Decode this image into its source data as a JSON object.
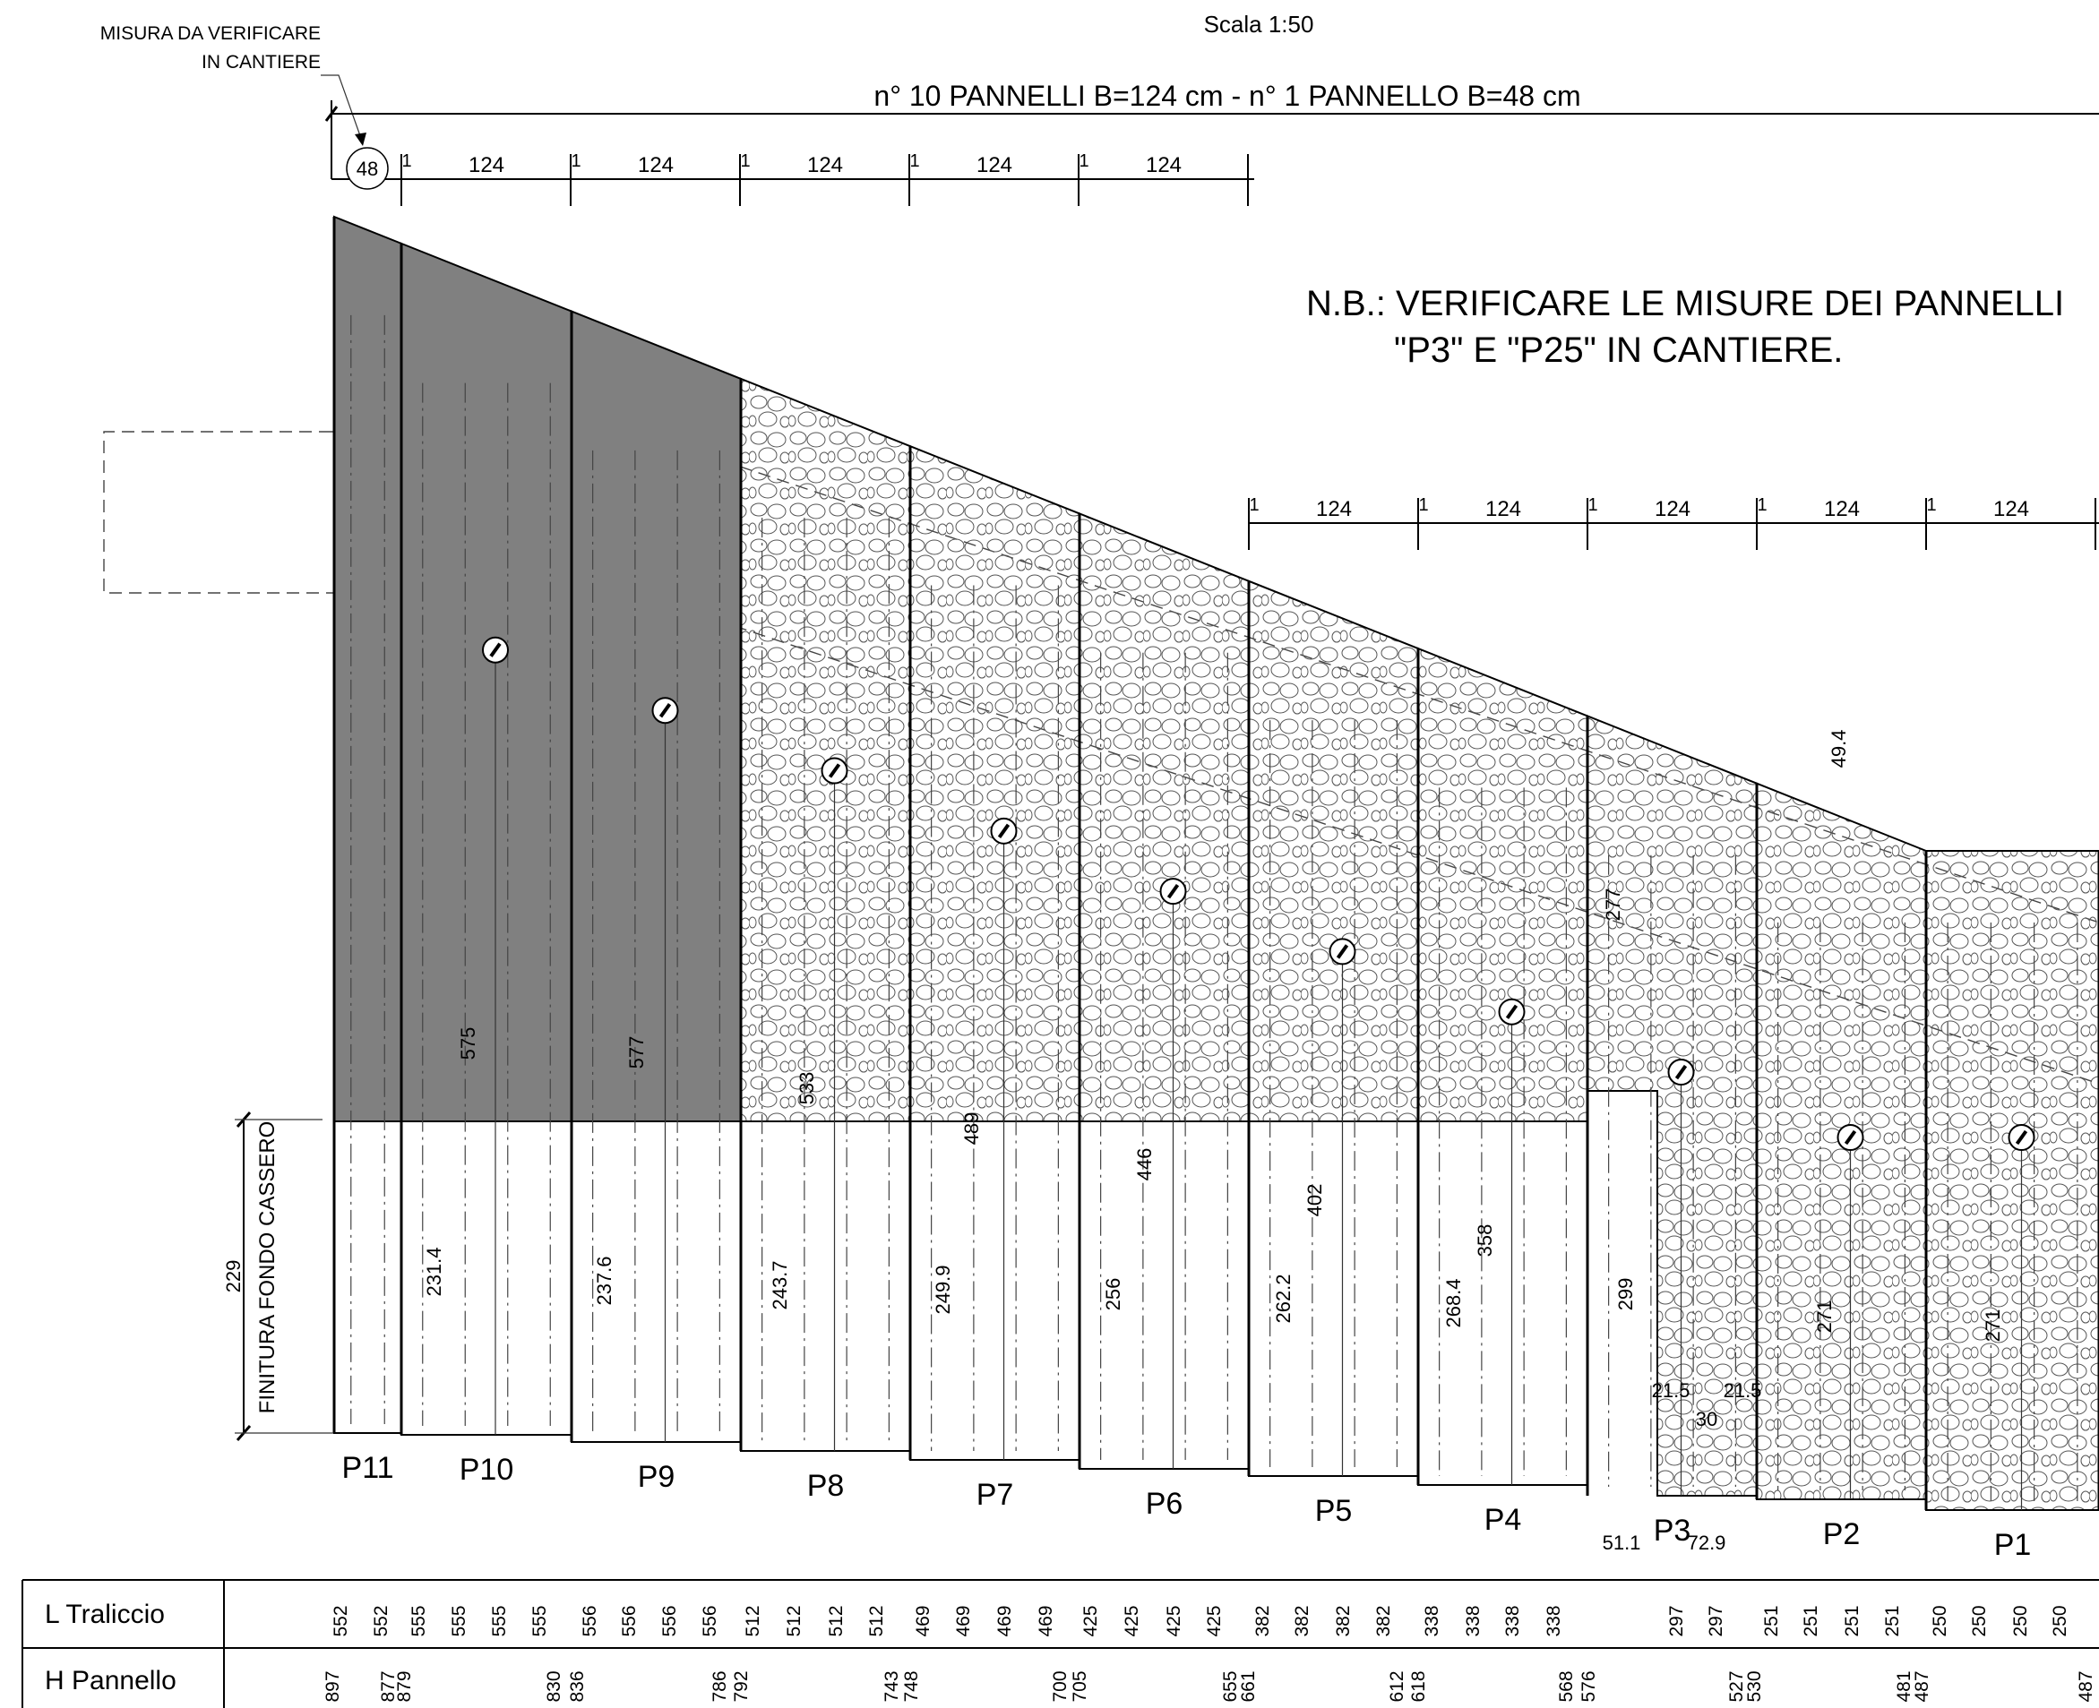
{
  "scale_label": "Scala 1:50",
  "site_note": {
    "line1": "MISURA DA VERIFICARE",
    "line2": "IN CANTIERE",
    "circle_value": "48"
  },
  "total_dimension": "n° 10 PANNELLI B=124 cm - n° 1 PANNELLO B=48 cm",
  "nb_note": {
    "line1": "N.B.: VERIFICARE LE MISURE DEI PANNELLI",
    "line2": "\"P3\" E \"P25\" IN CANTIERE."
  },
  "joint_label": "1",
  "panel_width_label": "124",
  "base_label": {
    "height": "229",
    "text": "FINITURA FONDO CASSERO"
  },
  "panels": [
    {
      "name": "P11",
      "fill": "dark",
      "dims": []
    },
    {
      "name": "P10",
      "fill": "dark",
      "dims": [
        "575",
        "231.4"
      ]
    },
    {
      "name": "P9",
      "fill": "dark",
      "dims": [
        "577",
        "237.6"
      ]
    },
    {
      "name": "P8",
      "fill": "stone",
      "dims": [
        "533",
        "243.7"
      ]
    },
    {
      "name": "P7",
      "fill": "stone",
      "dims": [
        "489",
        "249.9"
      ]
    },
    {
      "name": "P6",
      "fill": "stone",
      "dims": [
        "446",
        "256"
      ]
    },
    {
      "name": "P5",
      "fill": "stone",
      "dims": [
        "402",
        "262.2"
      ]
    },
    {
      "name": "P4",
      "fill": "stone",
      "dims": [
        "358",
        "268.4"
      ]
    },
    {
      "name": "P3",
      "fill": "stone",
      "dims": [
        "277",
        "299",
        "49.4",
        "21.5",
        "30",
        "21.5",
        "51.1",
        "72.9"
      ]
    },
    {
      "name": "P2",
      "fill": "stone",
      "dims": [
        "271"
      ]
    },
    {
      "name": "P1",
      "fill": "stone",
      "dims": [
        "271"
      ]
    }
  ],
  "table": {
    "rows": [
      {
        "label": "L Traliccio",
        "values": [
          "552",
          "552",
          "555",
          "555",
          "555",
          "555",
          "556",
          "556",
          "556",
          "556",
          "512",
          "512",
          "512",
          "512",
          "469",
          "469",
          "469",
          "469",
          "425",
          "425",
          "425",
          "425",
          "382",
          "382",
          "382",
          "382",
          "338",
          "338",
          "338",
          "338",
          "297",
          "297",
          "251",
          "251",
          "251",
          "251",
          "250",
          "250",
          "250",
          "250"
        ]
      },
      {
        "label": "H Pannello",
        "values": [
          "897",
          "877",
          "879",
          "830",
          "836",
          "786",
          "792",
          "743",
          "748",
          "700",
          "705",
          "655",
          "661",
          "612",
          "618",
          "568",
          "576",
          "527",
          "530",
          "481",
          "487",
          "487"
        ]
      }
    ]
  },
  "colors": {
    "dark_panel": "#808080",
    "stone_fill": "#ffffff",
    "line": "#000000"
  }
}
